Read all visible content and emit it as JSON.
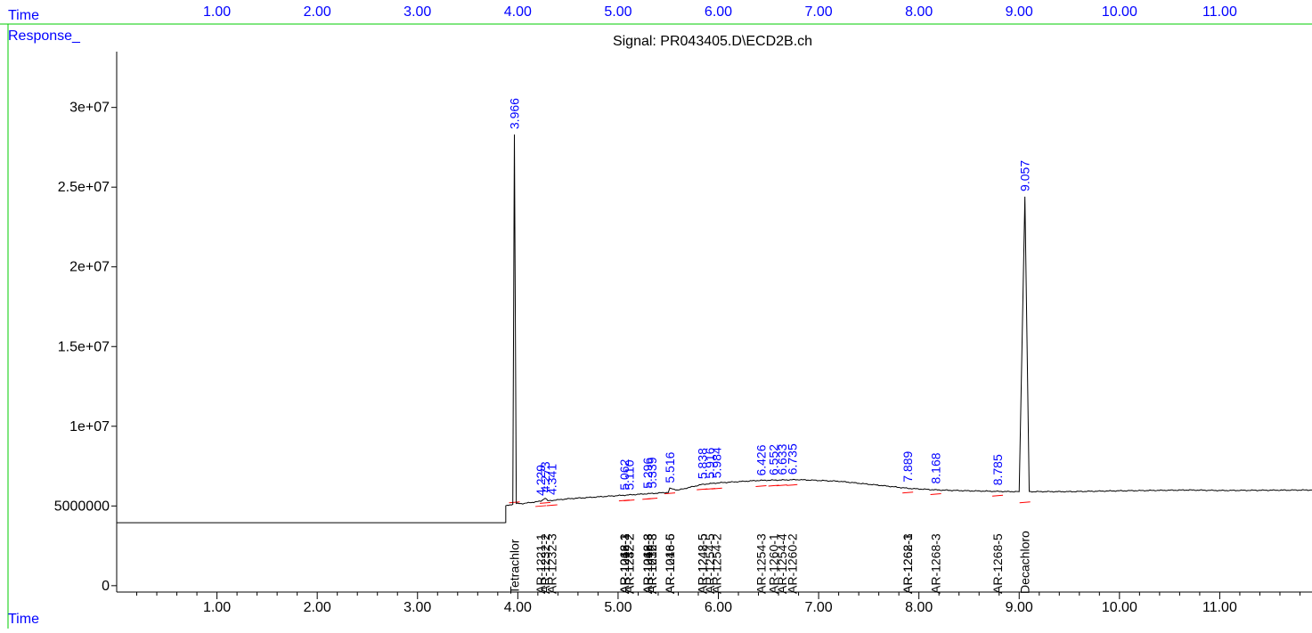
{
  "header": {
    "time_label": "Time",
    "response_label": "Response_",
    "signal_title": "Signal: PR043405.D\\ECD2B.ch"
  },
  "footer": {
    "time_label": "Time"
  },
  "colors": {
    "trace": "#000000",
    "peak_label": "#0000ff",
    "axis_header": "#0000ff",
    "compound_label": "#000000",
    "baseline_mark": "#ff0000",
    "top_border": "#00cc00"
  },
  "chart_data": {
    "type": "line",
    "title": "Signal: PR043405.D\\ECD2B.ch",
    "xlabel": "Time",
    "ylabel": "Response_",
    "xlim": [
      0,
      11.92
    ],
    "ylim": [
      -400000,
      33500000
    ],
    "x_ticks": [
      1.0,
      2.0,
      3.0,
      4.0,
      5.0,
      6.0,
      7.0,
      8.0,
      9.0,
      10.0,
      11.0
    ],
    "x_tick_labels": [
      "1.00",
      "2.00",
      "3.00",
      "4.00",
      "5.00",
      "6.00",
      "7.00",
      "8.00",
      "9.00",
      "10.00",
      "11.00"
    ],
    "y_ticks": [
      0,
      5000000,
      10000000,
      15000000,
      20000000,
      25000000,
      30000000
    ],
    "y_tick_labels": [
      "0",
      "5000000",
      "1e+07",
      "1.5e+07",
      "2e+07",
      "2.5e+07",
      "3e+07"
    ],
    "grid": false,
    "series": [
      {
        "x": [
          0.0,
          3.88,
          3.88,
          3.95,
          3.966,
          3.985,
          4.05,
          4.229,
          4.273,
          4.3,
          4.5,
          5.0,
          5.5,
          5.516,
          5.6,
          5.838,
          6.0,
          6.4,
          6.8,
          7.2,
          7.6,
          7.9,
          8.2,
          8.5,
          8.9,
          9.0,
          9.057,
          9.1,
          9.5,
          10.0,
          10.7,
          11.0,
          11.92
        ],
        "y": [
          3950000,
          3950000,
          5000000,
          5100000,
          28300000,
          5150000,
          5150000,
          5300000,
          5500000,
          5320000,
          5450000,
          5650000,
          5850000,
          6100000,
          6000000,
          6350000,
          6450000,
          6600000,
          6650000,
          6550000,
          6300000,
          6100000,
          6000000,
          5950000,
          5900000,
          5900000,
          24400000,
          5900000,
          5900000,
          5950000,
          6000000,
          5970000,
          6000000
        ]
      }
    ],
    "peaks": [
      {
        "rt": 3.966,
        "label": "3.966",
        "height": 28300000
      },
      {
        "rt": 4.229,
        "label": "4.229",
        "height": 5300000
      },
      {
        "rt": 4.273,
        "label": "4.273",
        "height": 5500000
      },
      {
        "rt": 4.341,
        "label": "4.341",
        "height": 5350000
      },
      {
        "rt": 5.062,
        "label": "5.062",
        "height": 5650000
      },
      {
        "rt": 5.11,
        "label": "5.110",
        "height": 5660000
      },
      {
        "rt": 5.296,
        "label": "5.296",
        "height": 5750000
      },
      {
        "rt": 5.339,
        "label": "5.339",
        "height": 5770000
      },
      {
        "rt": 5.516,
        "label": "5.516",
        "height": 6100000
      },
      {
        "rt": 5.838,
        "label": "5.838",
        "height": 6350000
      },
      {
        "rt": 5.916,
        "label": "5.916",
        "height": 6380000
      },
      {
        "rt": 5.984,
        "label": "5.984",
        "height": 6400000
      },
      {
        "rt": 6.426,
        "label": "6.426",
        "height": 6550000
      },
      {
        "rt": 6.552,
        "label": "6.552",
        "height": 6580000
      },
      {
        "rt": 6.633,
        "label": "6.633",
        "height": 6600000
      },
      {
        "rt": 6.735,
        "label": "6.735",
        "height": 6620000
      },
      {
        "rt": 7.889,
        "label": "7.889",
        "height": 6150000
      },
      {
        "rt": 8.168,
        "label": "8.168",
        "height": 6050000
      },
      {
        "rt": 8.785,
        "label": "8.785",
        "height": 5950000
      },
      {
        "rt": 9.057,
        "label": "9.057",
        "height": 24400000
      }
    ],
    "compounds": [
      {
        "rt": 3.966,
        "label": "Tetrachlor"
      },
      {
        "rt": 4.229,
        "label": "AR-1221-1"
      },
      {
        "rt": 4.273,
        "label": "AR-1232-2"
      },
      {
        "rt": 4.341,
        "label": "AR-1232-3"
      },
      {
        "rt": 5.062,
        "label": "AR-1016-1"
      },
      {
        "rt": 5.062,
        "label": "AR-1248-1"
      },
      {
        "rt": 5.062,
        "label": "AR-1262-3"
      },
      {
        "rt": 5.11,
        "label": "AR-1232-2"
      },
      {
        "rt": 5.11,
        "label": "AR-1242-2"
      },
      {
        "rt": 5.296,
        "label": "AR-1016-3"
      },
      {
        "rt": 5.296,
        "label": "AR-1248-3"
      },
      {
        "rt": 5.296,
        "label": "AR-1262-8"
      },
      {
        "rt": 5.339,
        "label": "AR-1016-8"
      },
      {
        "rt": 5.339,
        "label": "AR-1232-3"
      },
      {
        "rt": 5.516,
        "label": "AR-1016-5"
      },
      {
        "rt": 5.516,
        "label": "AR-1248-6"
      },
      {
        "rt": 5.838,
        "label": "AR-1242-5"
      },
      {
        "rt": 5.838,
        "label": "AR-1248-5"
      },
      {
        "rt": 5.916,
        "label": "AR-1254-5"
      },
      {
        "rt": 5.984,
        "label": "AR-1254-2"
      },
      {
        "rt": 6.426,
        "label": "AR-1254-3"
      },
      {
        "rt": 6.552,
        "label": "AR-1260-1"
      },
      {
        "rt": 6.633,
        "label": "AR-1254-4"
      },
      {
        "rt": 6.735,
        "label": "AR-1260-2"
      },
      {
        "rt": 7.889,
        "label": "AR-1262-1"
      },
      {
        "rt": 7.889,
        "label": "AR-1268-3"
      },
      {
        "rt": 8.168,
        "label": "AR-1268-3"
      },
      {
        "rt": 8.785,
        "label": "AR-1268-5"
      },
      {
        "rt": 9.057,
        "label": "Decachloro"
      }
    ]
  }
}
